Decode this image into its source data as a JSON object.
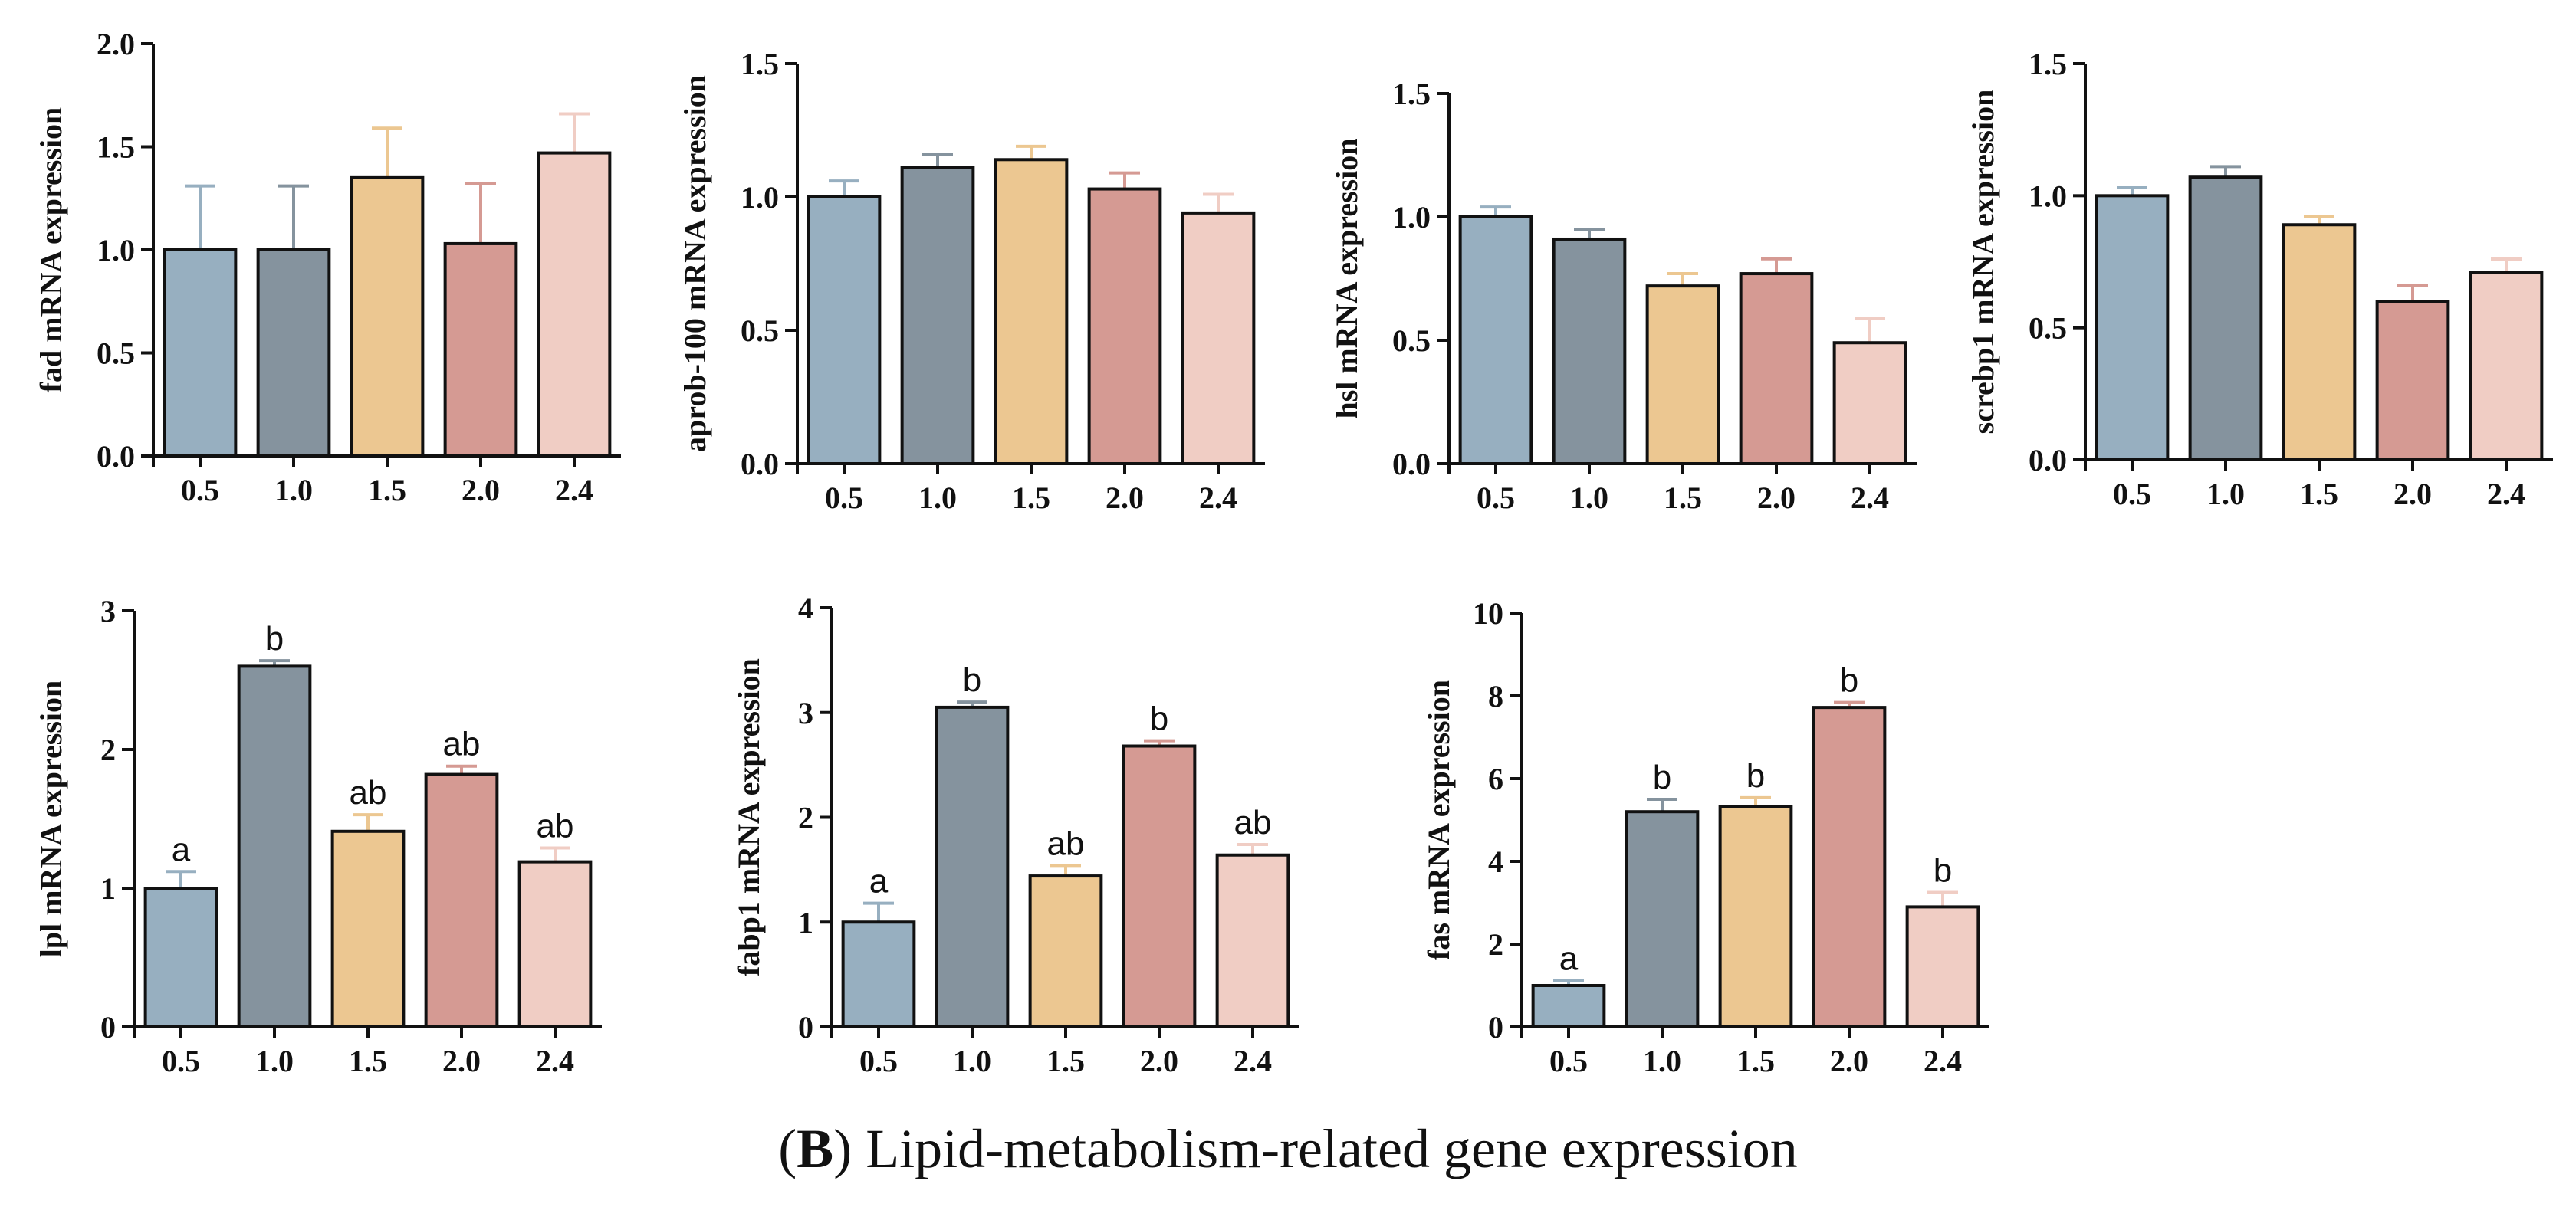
{
  "figure_caption": {
    "letter": "B",
    "paren_open": "(",
    "paren_close": ")",
    "text": " Lipid-metabolism-related gene expression"
  },
  "colors": {
    "0.5": "#97afc0",
    "1.0": "#85939e",
    "1.5": "#ecc791",
    "2.0": "#d59a93",
    "2.4": "#f0cdc4"
  },
  "chart_data": [
    {
      "type": "bar",
      "ylabel": "fad  mRNA expression",
      "categories": [
        "0.5",
        "1.0",
        "1.5",
        "2.0",
        "2.4"
      ],
      "values": [
        1.0,
        1.0,
        1.35,
        1.03,
        1.47
      ],
      "errors": [
        0.31,
        0.31,
        0.24,
        0.29,
        0.19
      ],
      "significance": [],
      "ylim": [
        0,
        2.0
      ],
      "yticks": [
        "0.0",
        "0.5",
        "1.0",
        "1.5",
        "2.0"
      ]
    },
    {
      "type": "bar",
      "ylabel": "aprob-100 mRNA expression",
      "categories": [
        "0.5",
        "1.0",
        "1.5",
        "2.0",
        "2.4"
      ],
      "values": [
        1.0,
        1.11,
        1.14,
        1.03,
        0.94
      ],
      "errors": [
        0.06,
        0.05,
        0.05,
        0.06,
        0.07
      ],
      "significance": [],
      "ylim": [
        0,
        1.5
      ],
      "yticks": [
        "0.0",
        "0.5",
        "1.0",
        "1.5"
      ]
    },
    {
      "type": "bar",
      "ylabel": "hsl  mRNA expression",
      "categories": [
        "0.5",
        "1.0",
        "1.5",
        "2.0",
        "2.4"
      ],
      "values": [
        1.0,
        0.91,
        0.72,
        0.77,
        0.49
      ],
      "errors": [
        0.04,
        0.04,
        0.05,
        0.06,
        0.1
      ],
      "significance": [],
      "ylim": [
        0,
        1.5
      ],
      "yticks": [
        "0.0",
        "0.5",
        "1.0",
        "1.5"
      ]
    },
    {
      "type": "bar",
      "ylabel": "screbp1 mRNA expression",
      "categories": [
        "0.5",
        "1.0",
        "1.5",
        "2.0",
        "2.4"
      ],
      "values": [
        1.0,
        1.07,
        0.89,
        0.6,
        0.71
      ],
      "errors": [
        0.03,
        0.04,
        0.03,
        0.06,
        0.05
      ],
      "significance": [],
      "ylim": [
        0,
        1.5
      ],
      "yticks": [
        "0.0",
        "0.5",
        "1.0",
        "1.5"
      ]
    },
    {
      "type": "bar",
      "ylabel": "lpl  mRNA expression",
      "categories": [
        "0.5",
        "1.0",
        "1.5",
        "2.0",
        "2.4"
      ],
      "values": [
        1.0,
        2.6,
        1.41,
        1.82,
        1.19
      ],
      "errors": [
        0.12,
        0.04,
        0.12,
        0.06,
        0.1
      ],
      "significance": [
        "a",
        "b",
        "ab",
        "ab",
        "ab"
      ],
      "ylim": [
        0,
        3
      ],
      "yticks": [
        "0",
        "1",
        "2",
        "3"
      ]
    },
    {
      "type": "bar",
      "ylabel": "fabp1  mRNA expression",
      "categories": [
        "0.5",
        "1.0",
        "1.5",
        "2.0",
        "2.4"
      ],
      "values": [
        1.0,
        3.05,
        1.44,
        2.68,
        1.64
      ],
      "errors": [
        0.18,
        0.05,
        0.1,
        0.05,
        0.1
      ],
      "significance": [
        "a",
        "b",
        "ab",
        "b",
        "ab"
      ],
      "ylim": [
        0,
        4
      ],
      "yticks": [
        "0",
        "1",
        "2",
        "3",
        "4"
      ]
    },
    {
      "type": "bar",
      "ylabel": "fas mRNA expression",
      "categories": [
        "0.5",
        "1.0",
        "1.5",
        "2.0",
        "2.4"
      ],
      "values": [
        1.0,
        5.2,
        5.32,
        7.72,
        2.9
      ],
      "errors": [
        0.12,
        0.3,
        0.22,
        0.12,
        0.35
      ],
      "significance": [
        "a",
        "b",
        "b",
        "b",
        "b"
      ],
      "ylim": [
        0,
        10
      ],
      "yticks": [
        "0",
        "2",
        "4",
        "6",
        "8",
        "10"
      ]
    }
  ]
}
